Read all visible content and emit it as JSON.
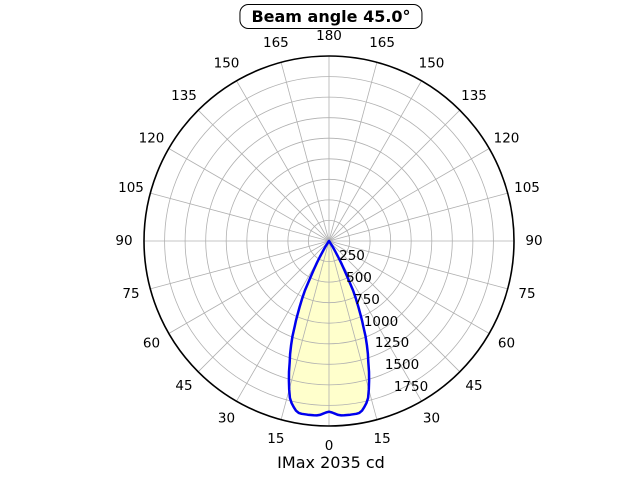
{
  "chart": {
    "title": "Beam angle 45.0°",
    "footer": "IMax 2035 cd"
  },
  "chart_data": {
    "type": "polar",
    "title": "Beam angle 45.0°",
    "footer_label": "IMax 2035 cd",
    "imax_cd": 2035,
    "beam_angle_deg": 45.0,
    "theta_zero_location": "bottom",
    "angle_ticks_deg": [
      0,
      15,
      30,
      45,
      60,
      75,
      90,
      105,
      120,
      135,
      150,
      165,
      180
    ],
    "angle_ticks_mirrored_both_sides": true,
    "angle_grid_step_deg": 15,
    "radial_ticks_cd": [
      250,
      500,
      750,
      1000,
      1250,
      1500,
      1750
    ],
    "radial_grid_step_cd": 250,
    "radial_axis_max_cd": 2250,
    "grid": true,
    "legend": "none",
    "colors": {
      "beam_stroke": "#0000ee",
      "beam_fill": "#ffffcc",
      "grid": "#b0b0b0",
      "boundary": "#000000",
      "background": "#ffffff"
    },
    "profile_symmetric": true,
    "profile": {
      "angles_deg": [
        0,
        1,
        2,
        3,
        4,
        5,
        7,
        9,
        10,
        11,
        12,
        13,
        14,
        15,
        16,
        17,
        18,
        19,
        20,
        21,
        22,
        22.5,
        23,
        24,
        25,
        26,
        27,
        28,
        29,
        30,
        31,
        32,
        33,
        34,
        35,
        36,
        38
      ],
      "intensity_cd": [
        1985,
        1995,
        2010,
        2025,
        2033,
        2035,
        2035,
        2035,
        2030,
        2010,
        1975,
        1935,
        1880,
        1790,
        1690,
        1590,
        1480,
        1390,
        1290,
        1185,
        1060,
        1010,
        950,
        840,
        740,
        640,
        480,
        380,
        290,
        215,
        150,
        95,
        55,
        28,
        12,
        4,
        0
      ]
    }
  }
}
